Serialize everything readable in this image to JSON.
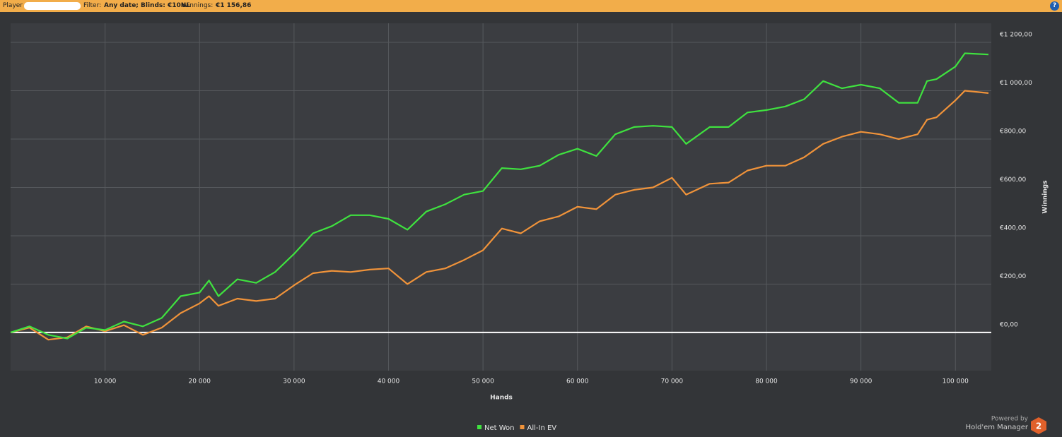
{
  "header": {
    "player_label": "Player",
    "filter_label": "Filter:",
    "filter_value": "Any date; Blinds: €10NL",
    "winnings_label": "Winnings:",
    "winnings_value": "€1 156,86",
    "help": "?"
  },
  "footer": {
    "powered_by": "Powered by",
    "brand": "Hold'em Manager",
    "logo": "2"
  },
  "chart_data": {
    "type": "line",
    "x_label": "Hands",
    "y_label": "Winnings",
    "x": [
      0,
      2000,
      4000,
      6000,
      8000,
      10000,
      12000,
      14000,
      16000,
      18000,
      20000,
      21000,
      22000,
      24000,
      26000,
      28000,
      30000,
      32000,
      34000,
      36000,
      38000,
      40000,
      42000,
      44000,
      46000,
      48000,
      50000,
      52000,
      54000,
      56000,
      58000,
      60000,
      62000,
      64000,
      66000,
      68000,
      70000,
      71500,
      74000,
      76000,
      78000,
      80000,
      82000,
      84000,
      86000,
      88000,
      90000,
      92000,
      94000,
      96000,
      97000,
      98000,
      100000,
      101000,
      103500
    ],
    "series": [
      {
        "name": "Net Won",
        "color": "#3fe23f",
        "values": [
          0,
          25,
          -10,
          -25,
          20,
          10,
          45,
          25,
          60,
          150,
          165,
          215,
          150,
          220,
          205,
          250,
          325,
          410,
          440,
          485,
          485,
          470,
          425,
          500,
          530,
          570,
          585,
          680,
          675,
          690,
          735,
          760,
          730,
          820,
          850,
          855,
          850,
          780,
          850,
          850,
          910,
          920,
          935,
          965,
          1040,
          1010,
          1025,
          1010,
          950,
          950,
          1040,
          1048,
          1100,
          1155,
          1150
        ]
      },
      {
        "name": "All-In EV",
        "color": "#f0933a",
        "values": [
          0,
          20,
          -30,
          -20,
          25,
          5,
          30,
          -10,
          20,
          80,
          120,
          150,
          110,
          140,
          130,
          140,
          195,
          245,
          255,
          250,
          260,
          265,
          200,
          250,
          265,
          300,
          340,
          430,
          410,
          460,
          480,
          520,
          510,
          570,
          590,
          600,
          640,
          570,
          615,
          620,
          670,
          690,
          690,
          725,
          780,
          810,
          830,
          820,
          800,
          820,
          880,
          890,
          960,
          1000,
          990
        ]
      }
    ],
    "xlim": [
      0,
      103800
    ],
    "xticks": [
      {
        "value": 10000,
        "label": "10 000"
      },
      {
        "value": 20000,
        "label": "20 000"
      },
      {
        "value": 30000,
        "label": "30 000"
      },
      {
        "value": 40000,
        "label": "40 000"
      },
      {
        "value": 50000,
        "label": "50 000"
      },
      {
        "value": 60000,
        "label": "60 000"
      },
      {
        "value": 70000,
        "label": "70 000"
      },
      {
        "value": 80000,
        "label": "80 000"
      },
      {
        "value": 90000,
        "label": "90 000"
      },
      {
        "value": 100000,
        "label": "100 000"
      }
    ],
    "ylim": [
      -158,
      1279
    ],
    "yticks": [
      {
        "value": 0,
        "label": "€0,00"
      },
      {
        "value": 200,
        "label": "€200,00"
      },
      {
        "value": 400,
        "label": "€400,00"
      },
      {
        "value": 600,
        "label": "€600,00"
      },
      {
        "value": 800,
        "label": "€800,00"
      },
      {
        "value": 1000,
        "label": "€1 000,00"
      },
      {
        "value": 1200,
        "label": "€1 200,00"
      }
    ],
    "grid": true,
    "zero_line": true
  }
}
